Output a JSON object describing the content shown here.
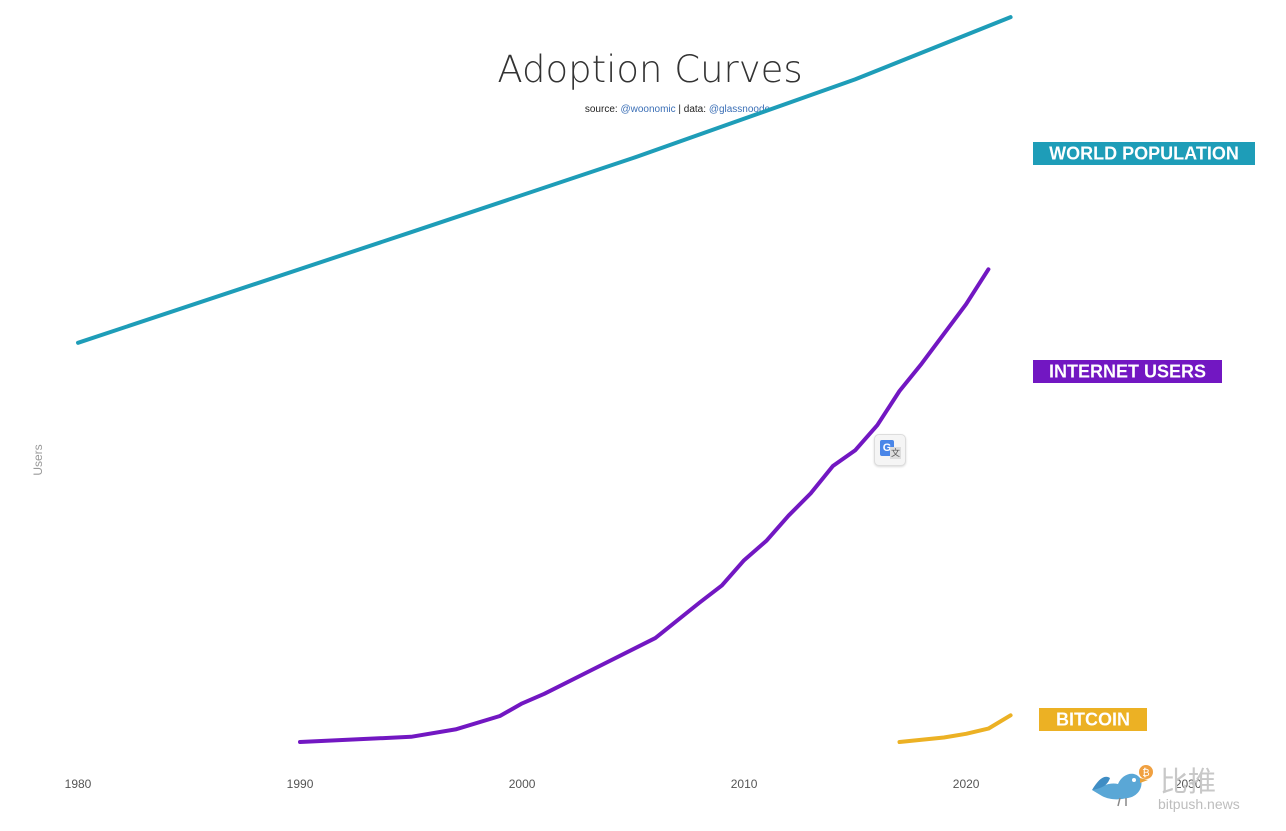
{
  "chart_data": {
    "type": "line",
    "title": "Adoption Curves",
    "subtitle": {
      "prefix": "source: ",
      "source": "@woonomic",
      "sep": " | data: ",
      "data": "@glassnoode"
    },
    "ylabel": "Users",
    "xlabel": "",
    "xlim": [
      1980,
      2034
    ],
    "ylim": [
      0,
      1
    ],
    "x_ticks": [
      "1980",
      "1990",
      "2000",
      "2010",
      "2020",
      "2030"
    ],
    "grid": false,
    "y_axis_numbers": "none (unitless, relative scale)",
    "series": [
      {
        "name": "WORLD POPULATION",
        "color": "#1e9db8",
        "points": [
          [
            1980,
            0.538
          ],
          [
            1995,
            0.687
          ],
          [
            2005,
            0.787
          ],
          [
            2015,
            0.893
          ],
          [
            2022,
            0.977
          ]
        ]
      },
      {
        "name": "INTERNET USERS",
        "color": "#7217c2",
        "points": [
          [
            1990,
            0.0
          ],
          [
            1995,
            0.007
          ],
          [
            1997,
            0.017
          ],
          [
            1999,
            0.035
          ],
          [
            2000,
            0.052
          ],
          [
            2001,
            0.065
          ],
          [
            2003,
            0.095
          ],
          [
            2006,
            0.14
          ],
          [
            2008,
            0.188
          ],
          [
            2009,
            0.211
          ],
          [
            2010,
            0.245
          ],
          [
            2011,
            0.271
          ],
          [
            2012,
            0.305
          ],
          [
            2013,
            0.335
          ],
          [
            2014,
            0.372
          ],
          [
            2015,
            0.393
          ],
          [
            2016,
            0.427
          ],
          [
            2017,
            0.473
          ],
          [
            2018,
            0.51
          ],
          [
            2020,
            0.59
          ],
          [
            2021,
            0.637
          ]
        ]
      },
      {
        "name": "BITCOIN",
        "color": "#ecb124",
        "points": [
          [
            2017,
            0.0
          ],
          [
            2019,
            0.006
          ],
          [
            2020,
            0.011
          ],
          [
            2021,
            0.018
          ],
          [
            2022,
            0.036
          ]
        ]
      }
    ]
  },
  "watermark": {
    "cn": "比推",
    "url": "bitpush.news"
  },
  "icons": {
    "translate": "google-translate-icon",
    "watermark": "bird-logo-icon"
  }
}
